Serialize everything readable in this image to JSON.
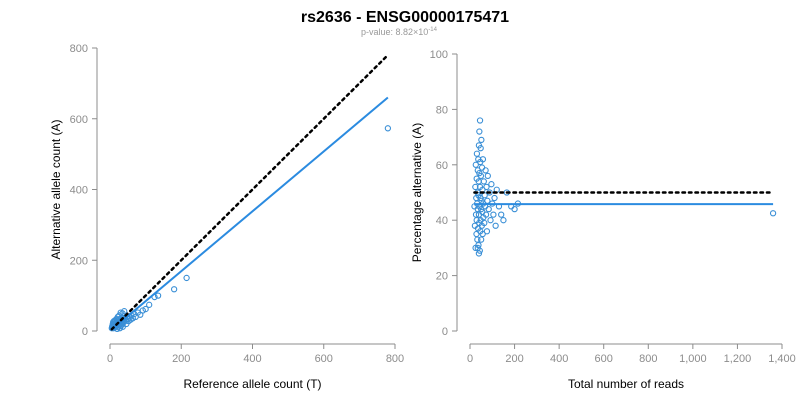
{
  "figure": {
    "title": "rs2636 - ENSG00000175471",
    "pvalue_text": "p-value: 8.82×10",
    "pvalue_exp": "-14"
  },
  "colors": {
    "points": "#3a8fd6",
    "fit_line": "#2b8be0",
    "reference_line": "#000000",
    "axis": "#8c8c8c"
  },
  "chart_data": [
    {
      "type": "scatter",
      "xlabel": "Reference allele count (T)",
      "ylabel": "Alternative allele count (A)",
      "xlim": [
        0,
        800
      ],
      "ylim": [
        0,
        800
      ],
      "xticks": [
        0,
        200,
        400,
        600,
        800
      ],
      "yticks": [
        0,
        200,
        400,
        600,
        800
      ],
      "xtick_labels": [
        "0",
        "200",
        "400",
        "600",
        "800"
      ],
      "ytick_labels": [
        "0",
        "200",
        "400",
        "600",
        "800"
      ],
      "grid": false,
      "points": [
        [
          5,
          8
        ],
        [
          6,
          12
        ],
        [
          7,
          15
        ],
        [
          8,
          10
        ],
        [
          8,
          20
        ],
        [
          9,
          25
        ],
        [
          10,
          8
        ],
        [
          10,
          18
        ],
        [
          11,
          28
        ],
        [
          12,
          14
        ],
        [
          12,
          22
        ],
        [
          13,
          10
        ],
        [
          14,
          30
        ],
        [
          15,
          18
        ],
        [
          16,
          12
        ],
        [
          17,
          26
        ],
        [
          18,
          20
        ],
        [
          19,
          15
        ],
        [
          20,
          24
        ],
        [
          21,
          32
        ],
        [
          22,
          18
        ],
        [
          23,
          12
        ],
        [
          24,
          28
        ],
        [
          25,
          22
        ],
        [
          26,
          16
        ],
        [
          27,
          34
        ],
        [
          28,
          20
        ],
        [
          29,
          26
        ],
        [
          30,
          14
        ],
        [
          31,
          30
        ],
        [
          32,
          24
        ],
        [
          33,
          38
        ],
        [
          34,
          18
        ],
        [
          35,
          28
        ],
        [
          36,
          22
        ],
        [
          38,
          32
        ],
        [
          40,
          26
        ],
        [
          42,
          36
        ],
        [
          44,
          30
        ],
        [
          46,
          20
        ],
        [
          48,
          40
        ],
        [
          50,
          34
        ],
        [
          52,
          28
        ],
        [
          55,
          38
        ],
        [
          58,
          32
        ],
        [
          60,
          44
        ],
        [
          64,
          36
        ],
        [
          68,
          48
        ],
        [
          72,
          40
        ],
        [
          78,
          52
        ],
        [
          85,
          46
        ],
        [
          92,
          58
        ],
        [
          100,
          62
        ],
        [
          110,
          74
        ],
        [
          125,
          96
        ],
        [
          135,
          100
        ],
        [
          180,
          118
        ],
        [
          215,
          150
        ],
        [
          780,
          573
        ],
        [
          14,
          22
        ],
        [
          18,
          34
        ],
        [
          22,
          40
        ],
        [
          26,
          44
        ],
        [
          30,
          52
        ],
        [
          35,
          50
        ],
        [
          40,
          56
        ],
        [
          20,
          6
        ],
        [
          28,
          8
        ],
        [
          36,
          12
        ]
      ],
      "series": [
        {
          "name": "",
          "kind": "fit",
          "x": [
            5,
            780
          ],
          "y": [
            4,
            660
          ]
        },
        {
          "name": "",
          "kind": "reference",
          "x": [
            5,
            780
          ],
          "y": [
            5,
            780
          ]
        }
      ]
    },
    {
      "type": "scatter",
      "xlabel": "Total number of reads",
      "ylabel": "Percentage alternative (A)",
      "xlim": [
        0,
        1400
      ],
      "ylim": [
        0,
        100
      ],
      "xticks": [
        0,
        200,
        400,
        600,
        800,
        1000,
        1200,
        1400
      ],
      "yticks": [
        0,
        20,
        40,
        60,
        80,
        100
      ],
      "xtick_labels": [
        "0",
        "200",
        "400",
        "600",
        "800",
        "1,000",
        "1,200",
        "1,400"
      ],
      "ytick_labels": [
        "0",
        "20",
        "40",
        "60",
        "80",
        "100"
      ],
      "grid": false,
      "points": [
        [
          20,
          45
        ],
        [
          22,
          38
        ],
        [
          24,
          52
        ],
        [
          25,
          30
        ],
        [
          26,
          60
        ],
        [
          27,
          42
        ],
        [
          28,
          48
        ],
        [
          29,
          35
        ],
        [
          30,
          55
        ],
        [
          30,
          40
        ],
        [
          31,
          64
        ],
        [
          32,
          46
        ],
        [
          33,
          33
        ],
        [
          34,
          50
        ],
        [
          35,
          58
        ],
        [
          35,
          44
        ],
        [
          36,
          37
        ],
        [
          37,
          62
        ],
        [
          38,
          49
        ],
        [
          38,
          31
        ],
        [
          39,
          54
        ],
        [
          40,
          42
        ],
        [
          40,
          67
        ],
        [
          41,
          39
        ],
        [
          42,
          57
        ],
        [
          43,
          45
        ],
        [
          44,
          29
        ],
        [
          45,
          52
        ],
        [
          46,
          61
        ],
        [
          46,
          36
        ],
        [
          47,
          48
        ],
        [
          48,
          40
        ],
        [
          49,
          56
        ],
        [
          50,
          33
        ],
        [
          50,
          44
        ],
        [
          51,
          69
        ],
        [
          52,
          47
        ],
        [
          53,
          38
        ],
        [
          54,
          59
        ],
        [
          55,
          43
        ],
        [
          56,
          51
        ],
        [
          57,
          35
        ],
        [
          58,
          62
        ],
        [
          59,
          46
        ],
        [
          60,
          41
        ],
        [
          62,
          54
        ],
        [
          64,
          39
        ],
        [
          66,
          49
        ],
        [
          68,
          45
        ],
        [
          70,
          58
        ],
        [
          72,
          42
        ],
        [
          74,
          52
        ],
        [
          76,
          36
        ],
        [
          78,
          47
        ],
        [
          80,
          56
        ],
        [
          84,
          44
        ],
        [
          88,
          50
        ],
        [
          92,
          40
        ],
        [
          96,
          53
        ],
        [
          100,
          46
        ],
        [
          105,
          42
        ],
        [
          110,
          48
        ],
        [
          115,
          38
        ],
        [
          120,
          51
        ],
        [
          130,
          45
        ],
        [
          140,
          42
        ],
        [
          150,
          40
        ],
        [
          165,
          50
        ],
        [
          185,
          45
        ],
        [
          200,
          44
        ],
        [
          215,
          46
        ],
        [
          45,
          76
        ],
        [
          40,
          28
        ],
        [
          35,
          30
        ],
        [
          48,
          66
        ],
        [
          42,
          72
        ],
        [
          1360,
          42.5
        ]
      ],
      "series": [
        {
          "name": "",
          "kind": "fit",
          "x": [
            20,
            1360
          ],
          "y": [
            45.8,
            45.8
          ]
        },
        {
          "name": "",
          "kind": "reference",
          "x": [
            20,
            1360
          ],
          "y": [
            50,
            50
          ]
        }
      ]
    }
  ]
}
